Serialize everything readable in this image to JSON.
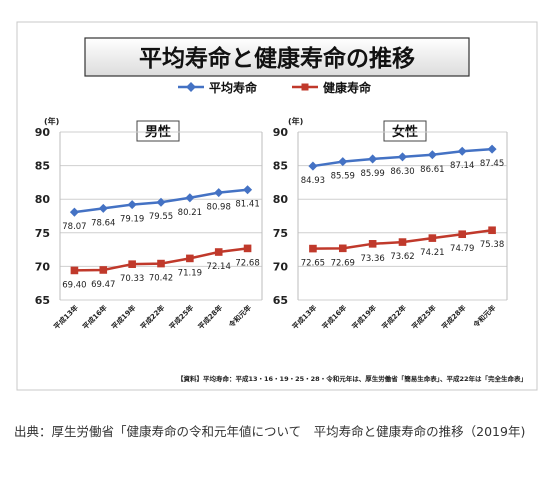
{
  "title": "平均寿命と健康寿命の推移",
  "legend": [
    {
      "label": "平均寿命",
      "color": "#4472c4",
      "marker": "diamond"
    },
    {
      "label": "健康寿命",
      "color": "#c0392b",
      "marker": "square"
    }
  ],
  "source_note": "【資料】平均寿命：平成13・16・19・25・28・令和元年は、厚生労働省「簡易生命表」、平成22年は「完全生命表」",
  "caption": "出典：厚生労働省「健康寿命の令和元年値について　平均寿命と健康寿命の推移（2019年)",
  "chart_data": [
    {
      "type": "line",
      "title": "男性",
      "ylabel": "(年)",
      "ylim": [
        65,
        90
      ],
      "yticks": [
        65,
        70,
        75,
        80,
        85,
        90
      ],
      "categories": [
        "平成13年",
        "平成16年",
        "平成19年",
        "平成22年",
        "平成25年",
        "平成28年",
        "令和元年"
      ],
      "series": [
        {
          "name": "平均寿命",
          "color": "#4472c4",
          "values": [
            78.07,
            78.64,
            79.19,
            79.55,
            80.21,
            80.98,
            81.41
          ],
          "labels": [
            "78.07",
            "78.64",
            "79.19",
            "79.55",
            "80.21",
            "80.98",
            "81.41"
          ]
        },
        {
          "name": "健康寿命",
          "color": "#c0392b",
          "values": [
            69.4,
            69.47,
            70.33,
            70.42,
            71.19,
            72.14,
            72.68
          ],
          "labels": [
            "69.40",
            "69.47",
            "70.33",
            "70.42",
            "71.19",
            "72.14",
            "72.68"
          ]
        }
      ],
      "grid": true
    },
    {
      "type": "line",
      "title": "女性",
      "ylabel": "(年)",
      "ylim": [
        65,
        90
      ],
      "yticks": [
        65,
        70,
        75,
        80,
        85,
        90
      ],
      "categories": [
        "平成13年",
        "平成16年",
        "平成19年",
        "平成22年",
        "平成25年",
        "平成28年",
        "令和元年"
      ],
      "series": [
        {
          "name": "平均寿命",
          "color": "#4472c4",
          "values": [
            84.93,
            85.59,
            85.99,
            86.3,
            86.61,
            87.14,
            87.45
          ],
          "labels": [
            "84.93",
            "85.59",
            "85.99",
            "86.30",
            "86.61",
            "87.14",
            "87.45"
          ]
        },
        {
          "name": "健康寿命",
          "color": "#c0392b",
          "values": [
            72.65,
            72.69,
            73.36,
            73.62,
            74.21,
            74.79,
            75.38
          ],
          "labels": [
            "72.65",
            "72.69",
            "73.36",
            "73.62",
            "74.21",
            "74.79",
            "75.38"
          ]
        }
      ],
      "grid": true
    }
  ]
}
